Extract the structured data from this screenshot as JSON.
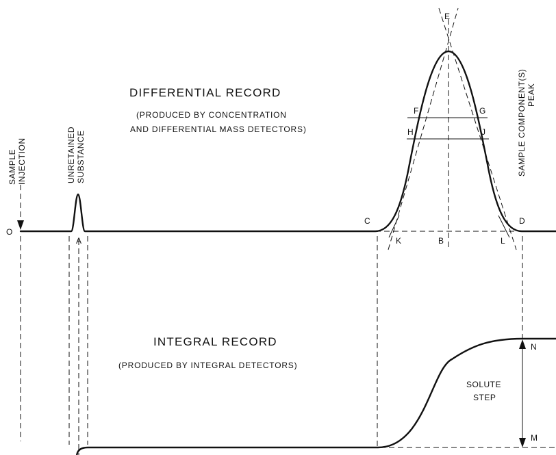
{
  "differential": {
    "title": "DIFFERENTIAL RECORD",
    "subtitle_line1": "(PRODUCED BY CONCENTRATION",
    "subtitle_line2": "AND DIFFERENTIAL MASS DETECTORS)"
  },
  "integral": {
    "title": "INTEGRAL RECORD",
    "subtitle": "(PRODUCED BY INTEGRAL DETECTORS)"
  },
  "labels": {
    "sample_injection_line1": "SAMPLE",
    "sample_injection_line2": "INJECTION",
    "unretained_line1": "UNRETAINED",
    "unretained_line2": "SUBSTANCE",
    "components_line1": "SAMPLE COMPONENT(S)",
    "components_line2": "PEAK",
    "solute_line1": "SOLUTE",
    "solute_line2": "STEP"
  },
  "points": {
    "O": "O",
    "A": "A",
    "B": "B",
    "C": "C",
    "D": "D",
    "E": "E",
    "F": "F",
    "G": "G",
    "H": "H",
    "J": "J",
    "K": "K",
    "L": "L",
    "M": "M",
    "N": "N"
  }
}
